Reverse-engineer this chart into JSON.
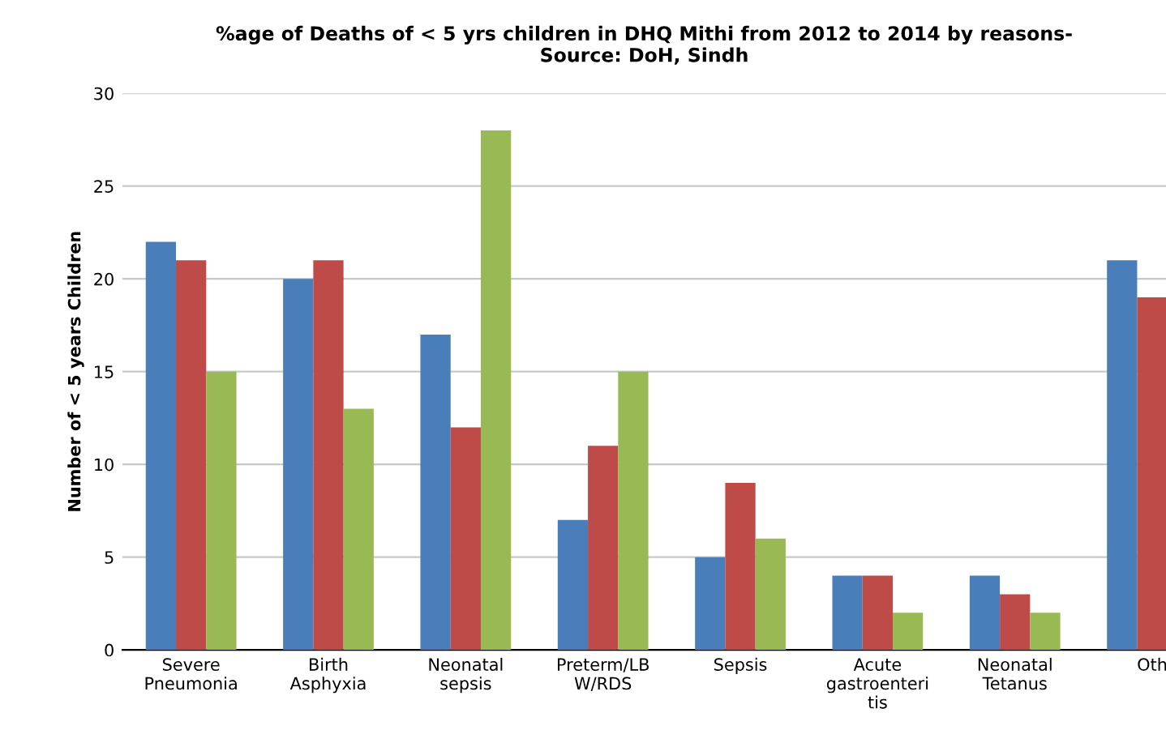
{
  "chart_data": {
    "type": "bar",
    "title": "%age of Deaths of < 5 yrs children in DHQ Mithi from 2012 to 2014 by reasons-\nSource: DoH, Sindh",
    "ylabel": "Number of < 5 years Children",
    "categories": [
      "Severe\nPneumonia",
      "Birth\nAsphyxia",
      "Neonatal\nsepsis",
      "Preterm/LB\nW/RDS",
      "Sepsis",
      "Acute\ngastroenteri\ntis",
      "Neonatal\nTetanus",
      "Oth"
    ],
    "series": [
      {
        "color": "#4a7ebb",
        "values": [
          22,
          20,
          17,
          7,
          5,
          4,
          4,
          21
        ]
      },
      {
        "color": "#be4b48",
        "values": [
          21,
          21,
          12,
          11,
          9,
          4,
          3,
          19
        ]
      },
      {
        "color": "#98b954",
        "values": [
          15,
          13,
          28,
          15,
          6,
          2,
          2,
          null
        ]
      }
    ],
    "ylim": [
      0,
      30
    ],
    "yticks": [
      0,
      5,
      10,
      15,
      20,
      25,
      30
    ],
    "grid": "y",
    "legend": false
  }
}
